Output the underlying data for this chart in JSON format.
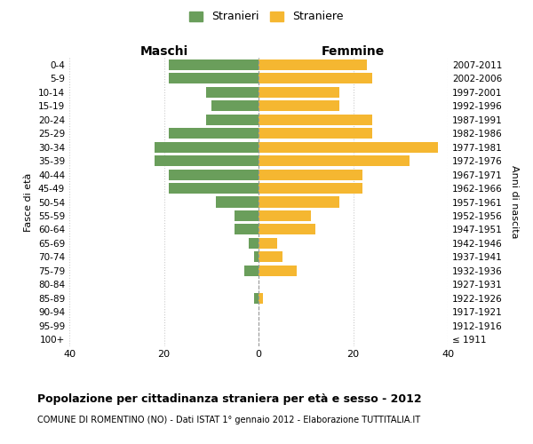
{
  "age_groups": [
    "100+",
    "95-99",
    "90-94",
    "85-89",
    "80-84",
    "75-79",
    "70-74",
    "65-69",
    "60-64",
    "55-59",
    "50-54",
    "45-49",
    "40-44",
    "35-39",
    "30-34",
    "25-29",
    "20-24",
    "15-19",
    "10-14",
    "5-9",
    "0-4"
  ],
  "birth_years": [
    "≤ 1911",
    "1912-1916",
    "1917-1921",
    "1922-1926",
    "1927-1931",
    "1932-1936",
    "1937-1941",
    "1942-1946",
    "1947-1951",
    "1952-1956",
    "1957-1961",
    "1962-1966",
    "1967-1971",
    "1972-1976",
    "1977-1981",
    "1982-1986",
    "1987-1991",
    "1992-1996",
    "1997-2001",
    "2002-2006",
    "2007-2011"
  ],
  "maschi": [
    0,
    0,
    0,
    1,
    0,
    3,
    1,
    2,
    5,
    5,
    9,
    19,
    19,
    22,
    22,
    19,
    11,
    10,
    11,
    19,
    19
  ],
  "femmine": [
    0,
    0,
    0,
    1,
    0,
    8,
    5,
    4,
    12,
    11,
    17,
    22,
    22,
    32,
    38,
    24,
    24,
    17,
    17,
    24,
    23
  ],
  "male_color": "#6a9e5b",
  "female_color": "#f5b731",
  "background_color": "#ffffff",
  "grid_color": "#cccccc",
  "title": "Popolazione per cittadinanza straniera per età e sesso - 2012",
  "subtitle": "COMUNE DI ROMENTINO (NO) - Dati ISTAT 1° gennaio 2012 - Elaborazione TUTTITALIA.IT",
  "xlabel_left": "Maschi",
  "xlabel_right": "Femmine",
  "ylabel_left": "Fasce di età",
  "ylabel_right": "Anni di nascita",
  "xlim": 40,
  "legend_maschi": "Stranieri",
  "legend_femmine": "Straniere"
}
